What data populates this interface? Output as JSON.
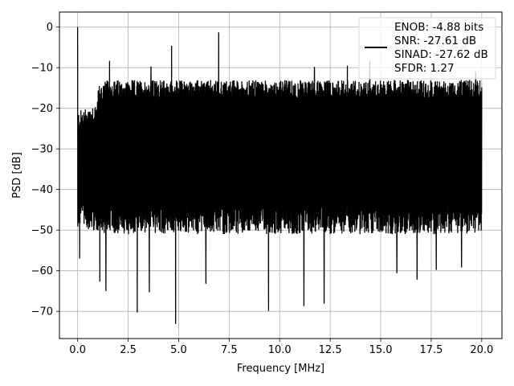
{
  "chart_data": {
    "type": "line",
    "xlabel": "Frequency [MHz]",
    "ylabel": "PSD [dB]",
    "xlim": [
      -0.9,
      21.0
    ],
    "ylim": [
      -76.7,
      3.7
    ],
    "xticks": [
      0.0,
      2.5,
      5.0,
      7.5,
      10.0,
      12.5,
      15.0,
      17.5,
      20.0
    ],
    "xtick_labels": [
      "0.0",
      "2.5",
      "5.0",
      "7.5",
      "10.0",
      "12.5",
      "15.0",
      "17.5",
      "20.0"
    ],
    "yticks": [
      0,
      -10,
      -20,
      -30,
      -40,
      -50,
      -60,
      -70
    ],
    "ytick_labels": [
      "0",
      "−10",
      "−20",
      "−30",
      "−40",
      "−50",
      "−60",
      "−70"
    ],
    "grid": true,
    "legend_position": "upper right",
    "legend_entries": [
      "ENOB: -4.88 bits",
      "SNR: -27.61 dB",
      "SINAD: -27.62 dB",
      "SFDR: 1.27"
    ],
    "series": [
      {
        "color": "#000000",
        "noise_floor_band": {
          "lower_typical": -46,
          "upper_typical": -15,
          "x_range": [
            0.0,
            20.0
          ]
        },
        "peaks": [
          {
            "x": 0.0,
            "y": 0.0
          },
          {
            "x": 4.65,
            "y": -4.6
          },
          {
            "x": 6.98,
            "y": -1.3
          },
          {
            "x": 1.58,
            "y": -8.3
          },
          {
            "x": 3.63,
            "y": -9.7
          },
          {
            "x": 11.72,
            "y": -9.8
          },
          {
            "x": 13.35,
            "y": -9.5
          },
          {
            "x": 14.46,
            "y": -8.3
          },
          {
            "x": 19.7,
            "y": -11.0
          }
        ],
        "dips": [
          {
            "x": 0.1,
            "y": -57.0
          },
          {
            "x": 1.1,
            "y": -62.7
          },
          {
            "x": 1.4,
            "y": -65.0
          },
          {
            "x": 2.95,
            "y": -70.3
          },
          {
            "x": 3.55,
            "y": -65.3
          },
          {
            "x": 4.85,
            "y": -73.1
          },
          {
            "x": 6.35,
            "y": -63.2
          },
          {
            "x": 9.45,
            "y": -69.9
          },
          {
            "x": 11.2,
            "y": -68.7
          },
          {
            "x": 12.2,
            "y": -68.1
          },
          {
            "x": 15.8,
            "y": -60.6
          },
          {
            "x": 16.8,
            "y": -62.2
          },
          {
            "x": 17.75,
            "y": -59.8
          },
          {
            "x": 19.0,
            "y": -59.2
          }
        ]
      }
    ]
  }
}
